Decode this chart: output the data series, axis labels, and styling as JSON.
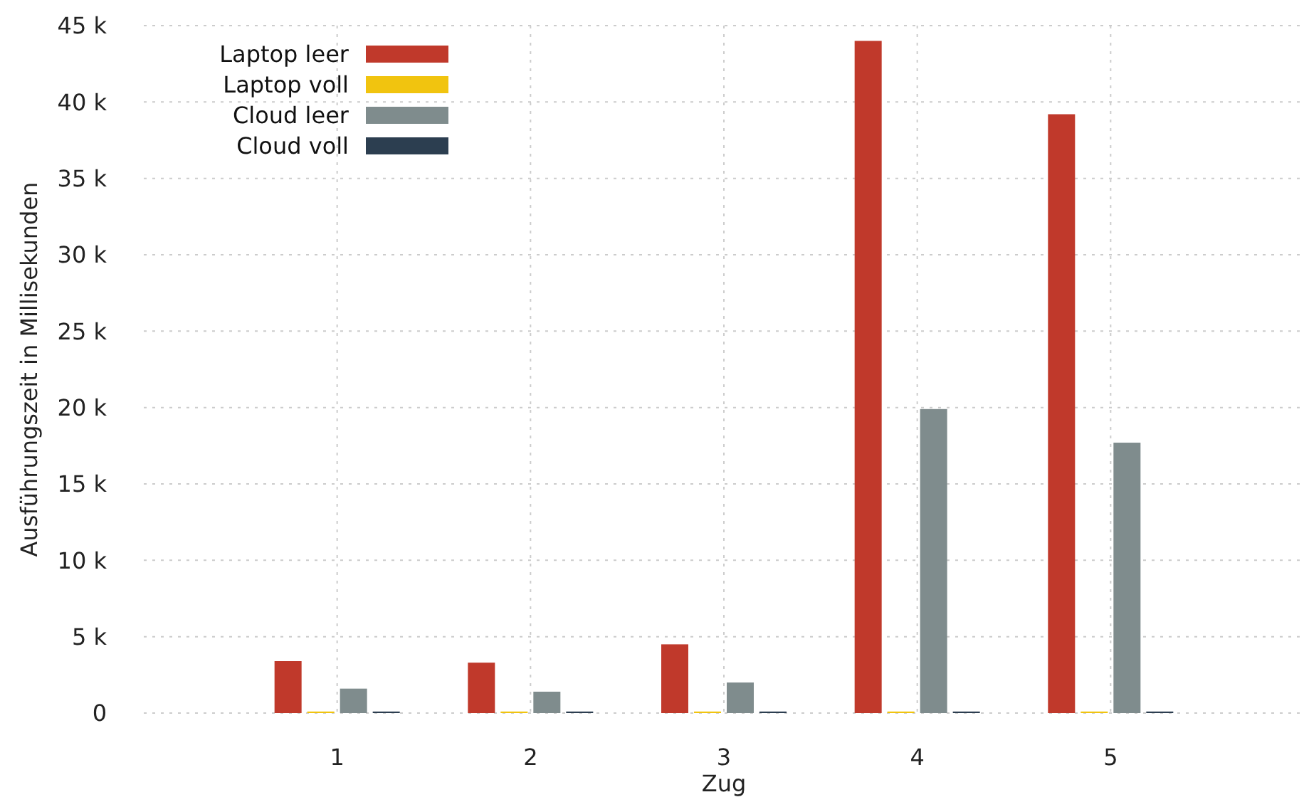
{
  "chart_data": {
    "type": "bar",
    "xlabel": "Zug",
    "ylabel": "Ausführungszeit in Millisekunden",
    "categories": [
      "1",
      "2",
      "3",
      "4",
      "5"
    ],
    "series": [
      {
        "name": "Laptop leer",
        "color": "#c0392b",
        "values": [
          3400,
          3300,
          4500,
          44000,
          39200
        ]
      },
      {
        "name": "Laptop voll",
        "color": "#f1c40f",
        "values": [
          100,
          100,
          100,
          100,
          100
        ]
      },
      {
        "name": "Cloud leer",
        "color": "#7f8c8d",
        "values": [
          1600,
          1400,
          2000,
          19900,
          17700
        ]
      },
      {
        "name": "Cloud voll",
        "color": "#2c3e50",
        "values": [
          100,
          100,
          100,
          100,
          100
        ]
      }
    ],
    "ylim": [
      0,
      45000
    ],
    "yticks": [
      {
        "value": 0,
        "label": "0"
      },
      {
        "value": 5000,
        "label": "5 k"
      },
      {
        "value": 10000,
        "label": "10 k"
      },
      {
        "value": 15000,
        "label": "15 k"
      },
      {
        "value": 20000,
        "label": "20 k"
      },
      {
        "value": 25000,
        "label": "25 k"
      },
      {
        "value": 30000,
        "label": "30 k"
      },
      {
        "value": 35000,
        "label": "35 k"
      },
      {
        "value": 40000,
        "label": "40 k"
      },
      {
        "value": 45000,
        "label": "45 k"
      }
    ],
    "grid": true,
    "legend": "top left"
  }
}
